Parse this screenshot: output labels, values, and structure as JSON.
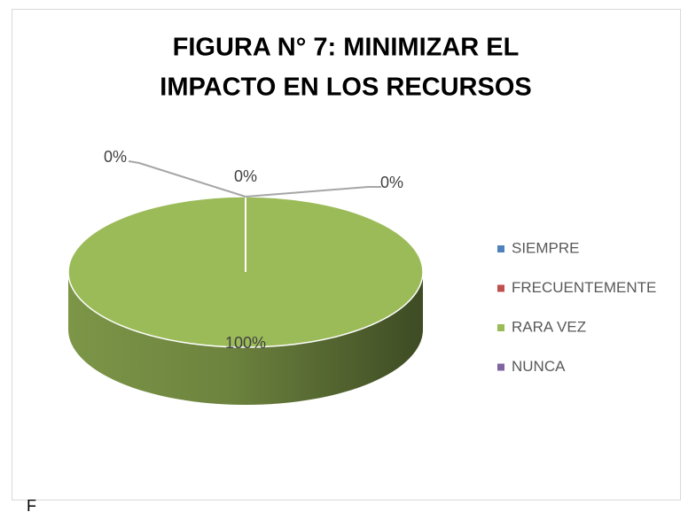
{
  "chart_data": {
    "type": "pie3d",
    "title": [
      "FIGURA N° 7: MINIMIZAR EL",
      "IMPACTO EN LOS RECURSOS"
    ],
    "categories": [
      "SIEMPRE",
      "FRECUENTEMENTE",
      "RARA VEZ",
      "NUNCA"
    ],
    "values": [
      0,
      0,
      100,
      0
    ],
    "value_labels": [
      "0%",
      "0%",
      "100%",
      "0%"
    ],
    "colors": [
      "#4f81bd",
      "#c0504d",
      "#9bbb59",
      "#8064a2"
    ],
    "legend": "right"
  },
  "caption": "F"
}
